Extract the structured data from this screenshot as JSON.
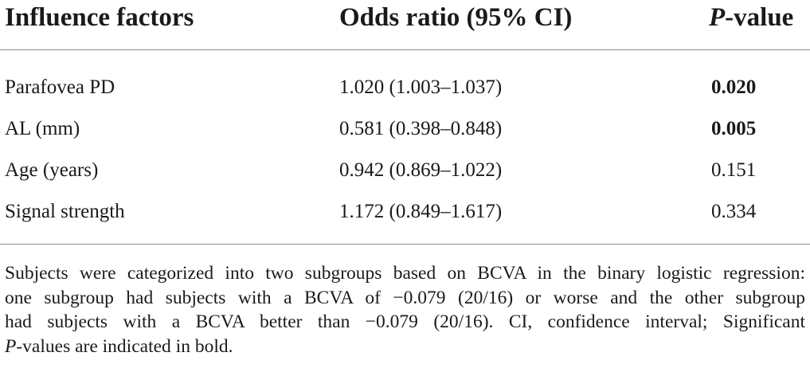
{
  "table": {
    "headers": {
      "factor": "Influence factors",
      "odds": "Odds ratio (95% CI)",
      "p_italic": "P",
      "p_rest": "-value"
    },
    "rows": [
      {
        "factor": "Parafovea PD",
        "odds": "1.020 (1.003–1.037)",
        "p": "0.020",
        "significant": true
      },
      {
        "factor": "AL (mm)",
        "odds": "0.581 (0.398–0.848)",
        "p": "0.005",
        "significant": true
      },
      {
        "factor": "Age (years)",
        "odds": "0.942 (0.869–1.022)",
        "p": "0.151",
        "significant": false
      },
      {
        "factor": "Signal strength",
        "odds": "1.172 (0.849–1.617)",
        "p": "0.334",
        "significant": false
      }
    ]
  },
  "footnote": {
    "line1": "Subjects were categorized into two subgroups based on BCVA in the binary logistic regression:",
    "line2": "one subgroup had subjects with a BCVA of −0.079 (20/16) or worse and the other subgroup",
    "line3": "had subjects with a BCVA better than −0.079 (20/16). CI, confidence interval; Significant",
    "line4_italic": "P",
    "line4_rest": "-values are indicated in bold."
  }
}
